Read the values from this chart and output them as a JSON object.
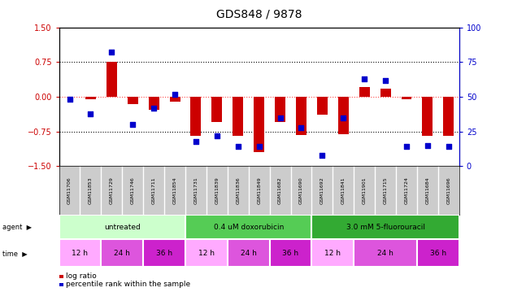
{
  "title": "GDS848 / 9878",
  "samples": [
    "GSM11706",
    "GSM11853",
    "GSM11729",
    "GSM11746",
    "GSM11711",
    "GSM11854",
    "GSM11731",
    "GSM11839",
    "GSM11836",
    "GSM11849",
    "GSM11682",
    "GSM11690",
    "GSM11692",
    "GSM11841",
    "GSM11901",
    "GSM11715",
    "GSM11724",
    "GSM11684",
    "GSM11696"
  ],
  "log_ratio": [
    0.0,
    -0.05,
    0.75,
    -0.15,
    -0.28,
    -0.1,
    -0.85,
    -0.55,
    -0.85,
    -1.2,
    -0.55,
    -0.82,
    -0.38,
    -0.8,
    0.22,
    0.18,
    -0.05,
    -0.85,
    -0.85
  ],
  "pct_rank": [
    48,
    38,
    82,
    30,
    42,
    52,
    18,
    22,
    14,
    14,
    35,
    28,
    8,
    35,
    63,
    62,
    14,
    15,
    14
  ],
  "ylim_left": [
    -1.5,
    1.5
  ],
  "ylim_right": [
    0,
    100
  ],
  "yticks_left": [
    -1.5,
    -0.75,
    0.0,
    0.75,
    1.5
  ],
  "yticks_right": [
    0,
    25,
    50,
    75,
    100
  ],
  "agent_groups": [
    {
      "label": "untreated",
      "start": 0,
      "end": 6,
      "color": "#ccffcc"
    },
    {
      "label": "0.4 uM doxorubicin",
      "start": 6,
      "end": 12,
      "color": "#55cc55"
    },
    {
      "label": "3.0 mM 5-fluorouracil",
      "start": 12,
      "end": 19,
      "color": "#55cc55"
    }
  ],
  "time_groups": [
    {
      "label": "12 h",
      "start": 0,
      "end": 2,
      "color": "#ffaaff"
    },
    {
      "label": "24 h",
      "start": 2,
      "end": 4,
      "color": "#dd66dd"
    },
    {
      "label": "36 h",
      "start": 4,
      "end": 6,
      "color": "#cc44cc"
    },
    {
      "label": "12 h",
      "start": 6,
      "end": 8,
      "color": "#ffaaff"
    },
    {
      "label": "24 h",
      "start": 8,
      "end": 10,
      "color": "#dd66dd"
    },
    {
      "label": "36 h",
      "start": 10,
      "end": 12,
      "color": "#cc44cc"
    },
    {
      "label": "12 h",
      "start": 12,
      "end": 14,
      "color": "#ffaaff"
    },
    {
      "label": "24 h",
      "start": 14,
      "end": 17,
      "color": "#dd66dd"
    },
    {
      "label": "36 h",
      "start": 17,
      "end": 19,
      "color": "#cc44cc"
    }
  ],
  "bar_color": "#cc0000",
  "dot_color": "#0000cc",
  "zero_line_color": "#ff4444",
  "grid_color": "#333333",
  "bg_color": "#ffffff",
  "left_axis_color": "#cc0000",
  "right_axis_color": "#0000cc",
  "legend_items": [
    {
      "label": "log ratio",
      "color": "#cc0000"
    },
    {
      "label": "percentile rank within the sample",
      "color": "#0000cc"
    }
  ]
}
